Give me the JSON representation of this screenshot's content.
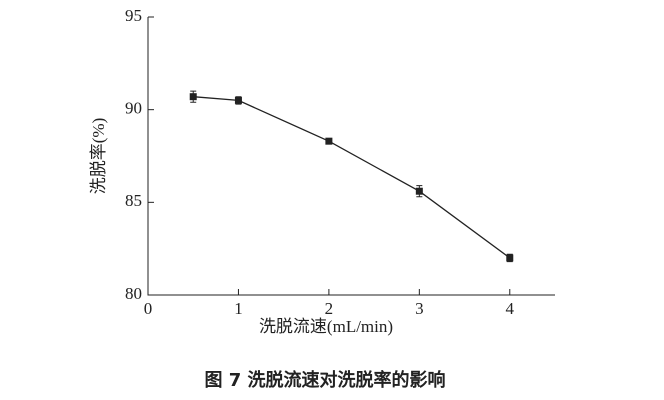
{
  "chart_data": {
    "type": "line",
    "x_label": "洗脱流速(mL/min)",
    "y_label": "洗脱率(%)",
    "caption": "图 7    洗脱流速对洗脱率的影响",
    "x": [
      0.5,
      1,
      2,
      3,
      4
    ],
    "series": [
      {
        "name": "洗脱率",
        "color": "#222222",
        "values": [
          90.7,
          90.5,
          88.3,
          85.6,
          82.0
        ],
        "errors": [
          0.3,
          0.2,
          0.1,
          0.3,
          0.2
        ]
      }
    ],
    "xlim": [
      0,
      4.5
    ],
    "ylim": [
      80,
      95
    ],
    "xticks": [
      0,
      1,
      2,
      3,
      4
    ],
    "yticks": [
      80,
      85,
      90,
      95
    ]
  }
}
